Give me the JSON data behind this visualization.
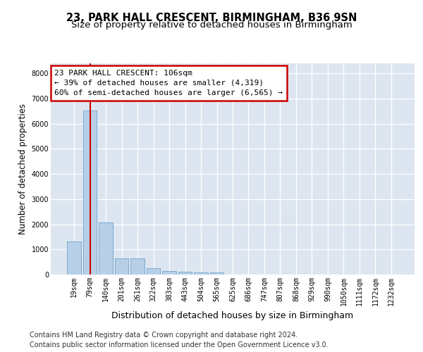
{
  "title1": "23, PARK HALL CRESCENT, BIRMINGHAM, B36 9SN",
  "title2": "Size of property relative to detached houses in Birmingham",
  "xlabel": "Distribution of detached houses by size in Birmingham",
  "ylabel": "Number of detached properties",
  "footnote1": "Contains HM Land Registry data © Crown copyright and database right 2024.",
  "footnote2": "Contains public sector information licensed under the Open Government Licence v3.0.",
  "bar_categories": [
    "19sqm",
    "79sqm",
    "140sqm",
    "201sqm",
    "261sqm",
    "322sqm",
    "383sqm",
    "443sqm",
    "504sqm",
    "565sqm",
    "625sqm",
    "686sqm",
    "747sqm",
    "807sqm",
    "868sqm",
    "929sqm",
    "990sqm",
    "1050sqm",
    "1111sqm",
    "1172sqm",
    "1232sqm"
  ],
  "bar_values": [
    1310,
    6530,
    2080,
    640,
    640,
    255,
    140,
    115,
    85,
    75,
    0,
    0,
    0,
    0,
    0,
    0,
    0,
    0,
    0,
    0,
    0
  ],
  "bar_color": "#b8cfe8",
  "bar_edge_color": "#7aaad0",
  "vline_x": 1.0,
  "vline_color": "#cc0000",
  "annotation_title": "23 PARK HALL CRESCENT: 106sqm",
  "annotation_line1": "← 39% of detached houses are smaller (4,319)",
  "annotation_line2": "60% of semi-detached houses are larger (6,565) →",
  "annotation_box_edgecolor": "#cc0000",
  "ylim": [
    0,
    8400
  ],
  "yticks": [
    0,
    1000,
    2000,
    3000,
    4000,
    5000,
    6000,
    7000,
    8000
  ],
  "background_color": "#dde6f0",
  "grid_color": "#ffffff",
  "title1_fontsize": 10.5,
  "title2_fontsize": 9.5,
  "xlabel_fontsize": 9,
  "ylabel_fontsize": 8.5,
  "tick_fontsize": 7,
  "annotation_fontsize": 8,
  "footnote_fontsize": 7
}
